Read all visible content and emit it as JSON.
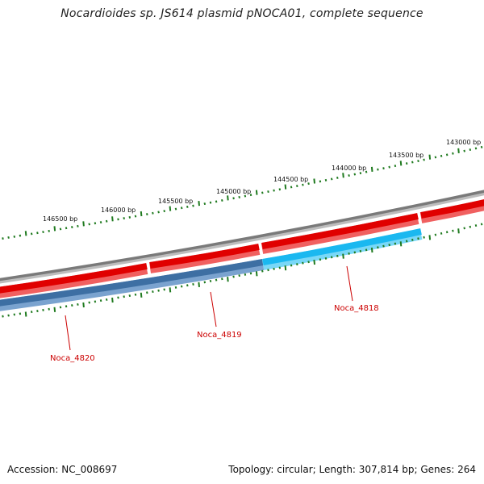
{
  "title": "Nocardioides sp. JS614 plasmid pNOCA01, complete sequence",
  "footer": {
    "accession": "Accession: NC_008697",
    "summary": "Topology: circular; Length: 307,814 bp; Genes: 264"
  },
  "scale_labels": [
    "146500 bp",
    "146000 bp",
    "145500 bp",
    "145000 bp",
    "144500 bp",
    "144000 bp",
    "143500 bp",
    "143000 bp"
  ],
  "gene_labels": [
    "Noca_4818",
    "Noca_4819",
    "Noca_4820"
  ],
  "colors": {
    "backbone": "#7a7a7a",
    "forward_cds": "#e00000",
    "gene_highlight": "#1ab8f0",
    "gene_dark": "#3d6fa3",
    "ticks": "#1f7a1f",
    "gene_label": "#cc0000"
  }
}
